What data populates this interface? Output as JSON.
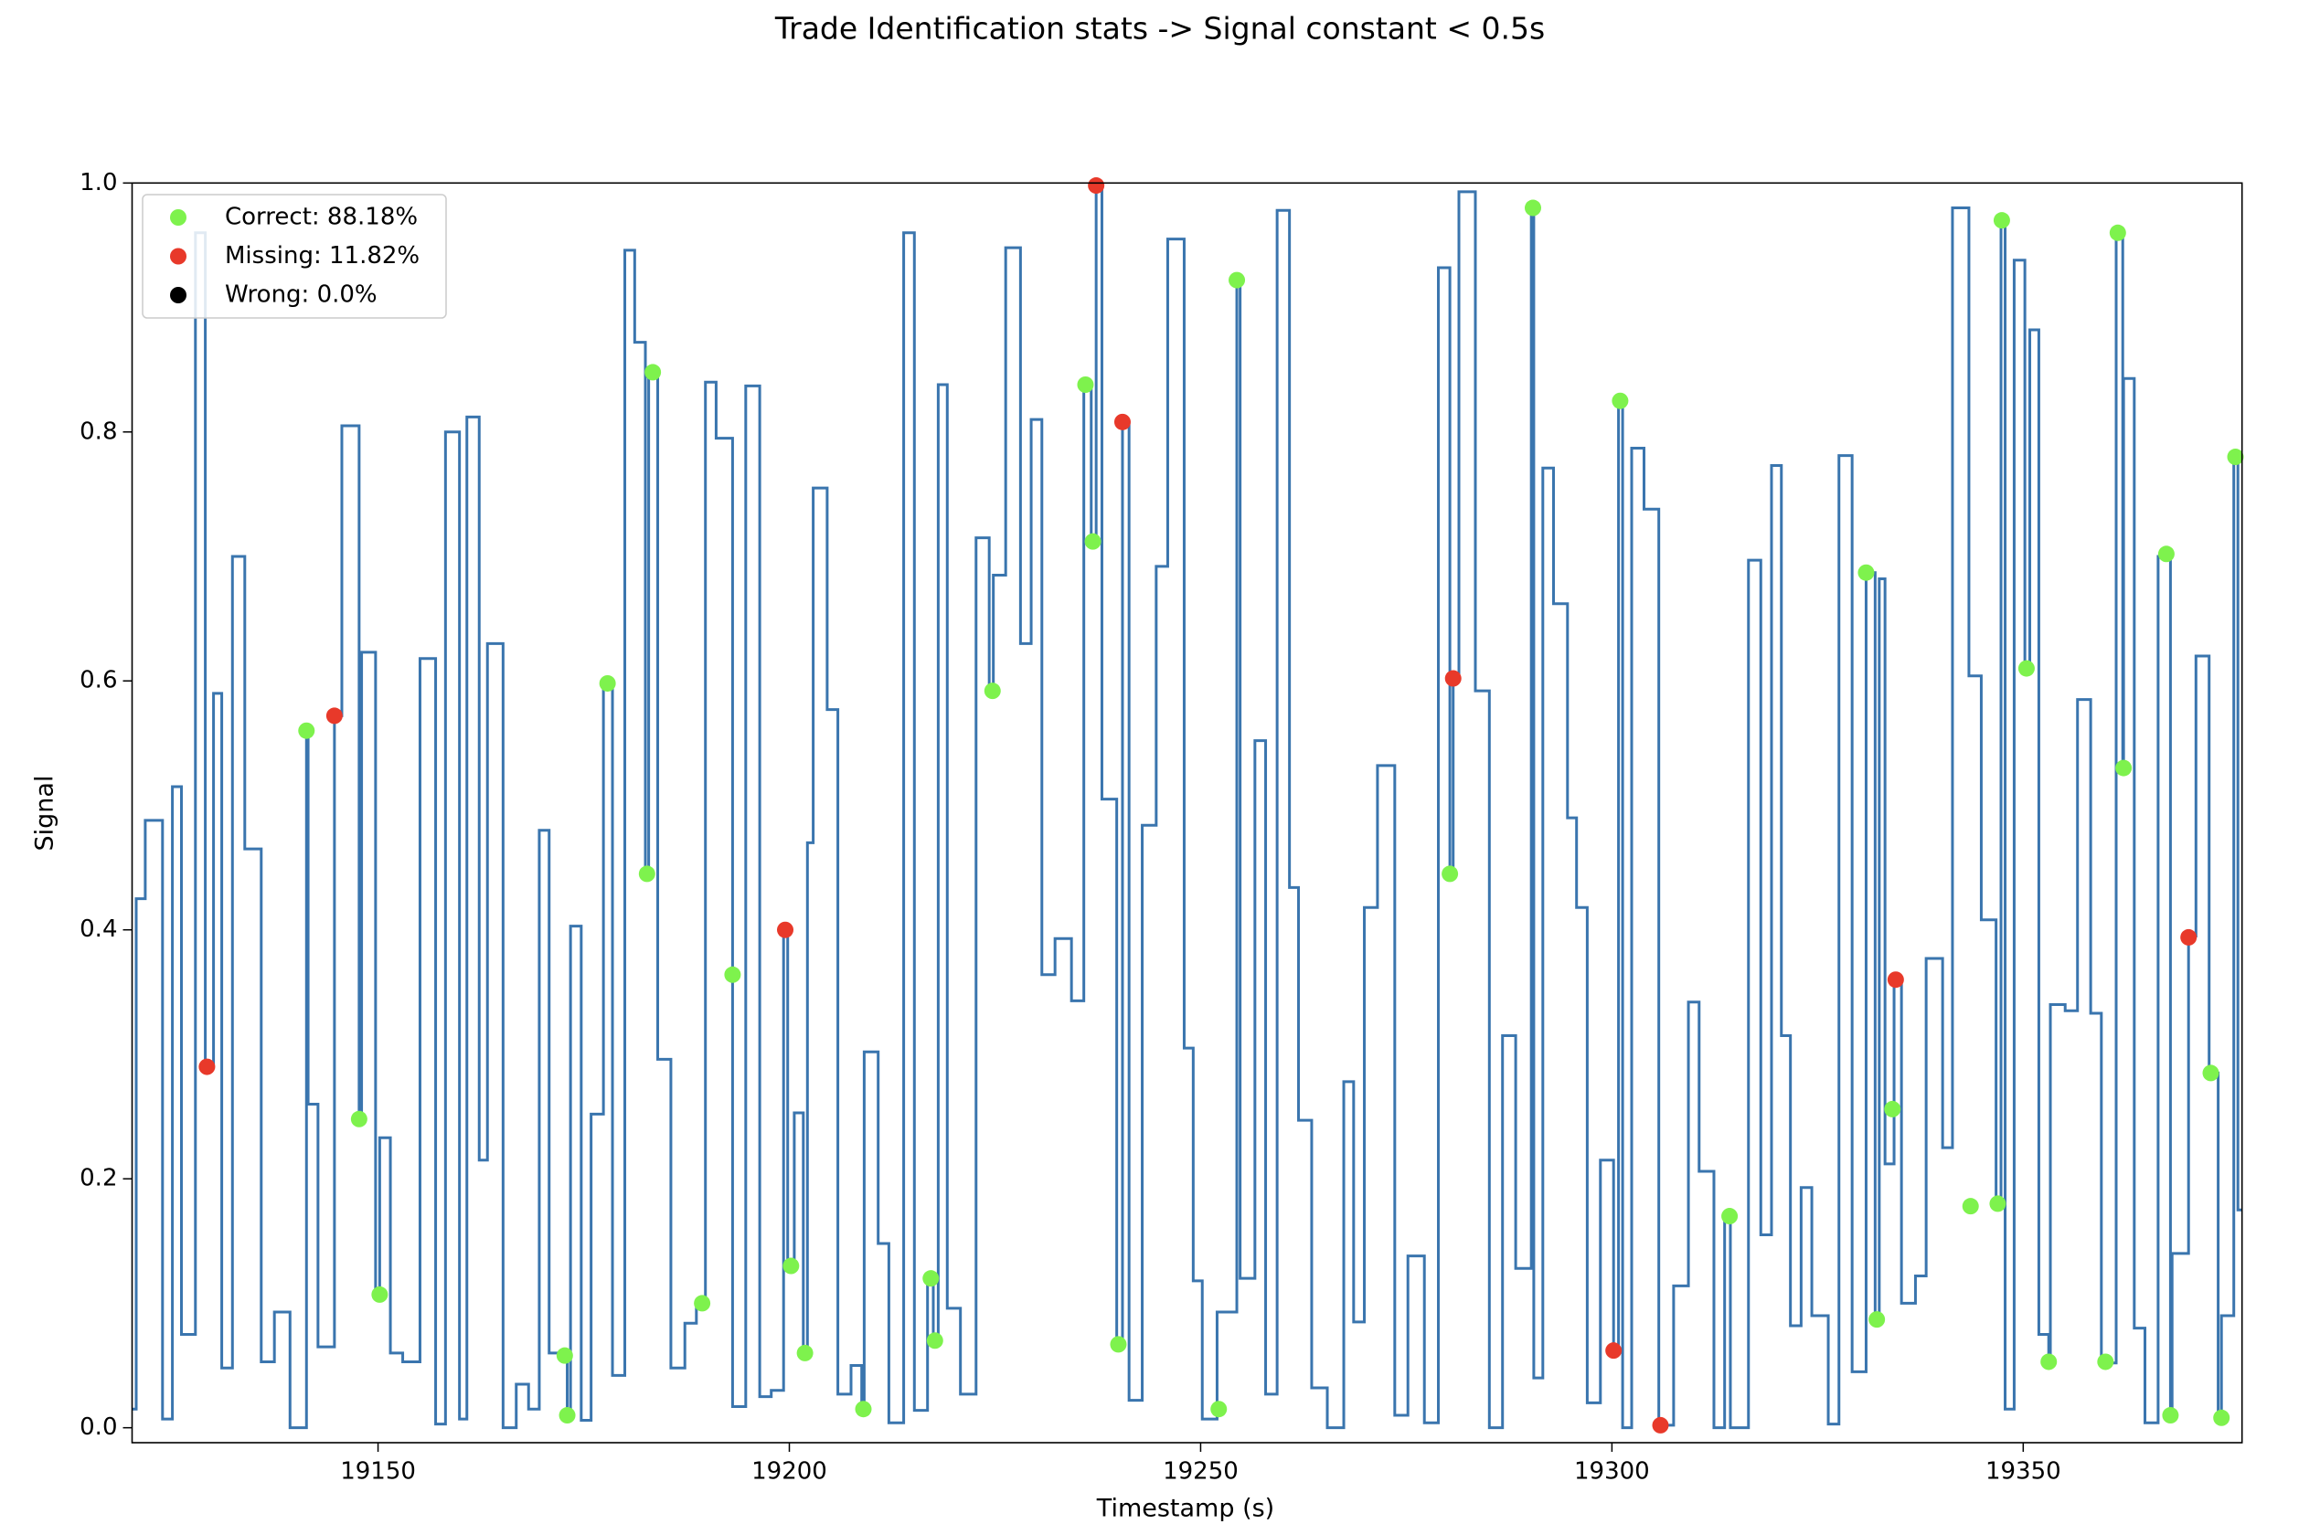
{
  "chart_data": {
    "type": "step",
    "title": "Trade Identification stats -> Signal constant < 0.5s",
    "x_label": "Timestamp (s)",
    "y_label": "Signal",
    "xlim": [
      19120.1,
      19376.6
    ],
    "ylim": [
      -0.012,
      1.0
    ],
    "xticks": [
      19150,
      19200,
      19250,
      19300,
      19350
    ],
    "yticks": [
      {
        "value": 0.0,
        "label": "0.0"
      },
      0.2,
      0.4,
      0.6,
      0.8,
      {
        "value": 1.0,
        "label": "1.0"
      }
    ],
    "legend": "upper left",
    "color": "#3a75ae",
    "x": [
      19120.1,
      19120.6,
      19121.7,
      19123.8,
      19125.0,
      19126.1,
      19127.8,
      19129.0,
      19130.0,
      19131.0,
      19132.3,
      19133.8,
      19135.8,
      19137.4,
      19139.3,
      19141.3,
      19141.5,
      19142.7,
      19144.7,
      19145.6,
      19147.7,
      19148.0,
      19149.7,
      19150.2,
      19151.5,
      19153.0,
      19155.1,
      19157.0,
      19158.2,
      19159.9,
      19160.8,
      19162.3,
      19163.3,
      19165.2,
      19166.8,
      19168.3,
      19169.6,
      19170.8,
      19172.7,
      19173.0,
      19173.4,
      19174.7,
      19175.9,
      19177.4,
      19178.5,
      19180.0,
      19181.2,
      19182.5,
      19182.9,
      19184.0,
      19185.6,
      19187.3,
      19188.7,
      19189.8,
      19191.1,
      19193.1,
      19194.7,
      19196.4,
      19197.8,
      19199.3,
      19199.8,
      19200.6,
      19201.7,
      19202.2,
      19202.9,
      19204.6,
      19205.9,
      19207.5,
      19208.8,
      19209.1,
      19210.8,
      19212.1,
      19213.9,
      19215.2,
      19216.8,
      19217.5,
      19218.1,
      19219.2,
      19220.8,
      19222.7,
      19224.3,
      19224.8,
      19226.3,
      19228.1,
      19229.4,
      19230.7,
      19232.3,
      19234.3,
      19235.8,
      19236.7,
      19237.3,
      19238.0,
      19239.8,
      19240.5,
      19241.3,
      19242.9,
      19244.6,
      19246.0,
      19248.0,
      19249.1,
      19250.2,
      19252.0,
      19254.4,
      19254.8,
      19256.6,
      19257.9,
      19259.3,
      19260.8,
      19261.9,
      19263.5,
      19265.4,
      19267.4,
      19268.6,
      19269.9,
      19271.5,
      19273.6,
      19275.2,
      19277.2,
      19278.9,
      19280.3,
      19280.7,
      19281.4,
      19283.4,
      19285.1,
      19286.7,
      19288.3,
      19290.2,
      19290.5,
      19291.6,
      19292.9,
      19294.6,
      19295.7,
      19297.0,
      19298.6,
      19300.2,
      19300.8,
      19301.3,
      19302.4,
      19303.9,
      19305.7,
      19307.5,
      19309.3,
      19310.6,
      19312.4,
      19313.7,
      19314.4,
      19316.6,
      19318.1,
      19319.4,
      19320.6,
      19321.7,
      19323.0,
      19324.3,
      19326.3,
      19327.6,
      19329.2,
      19330.9,
      19332.0,
      19332.5,
      19333.2,
      19334.3,
      19335.2,
      19336.9,
      19338.2,
      19340.2,
      19341.4,
      19343.4,
      19344.9,
      19346.7,
      19347.3,
      19347.8,
      19348.9,
      19350.2,
      19350.8,
      19351.9,
      19353.1,
      19353.3,
      19355.1,
      19356.6,
      19358.2,
      19359.5,
      19361.3,
      19362.1,
      19362.2,
      19363.5,
      19364.8,
      19366.4,
      19367.9,
      19368.1,
      19370.1,
      19371.0,
      19372.6,
      19373.7,
      19374.1,
      19375.6,
      19376.1,
      19376.6
    ],
    "values": [
      0.015,
      0.425,
      0.488,
      0.007,
      0.515,
      0.075,
      0.96,
      0.29,
      0.59,
      0.048,
      0.7,
      0.465,
      0.053,
      0.093,
      0.0,
      0.56,
      0.26,
      0.065,
      0.572,
      0.805,
      0.25,
      0.623,
      0.107,
      0.233,
      0.06,
      0.053,
      0.618,
      0.003,
      0.8,
      0.007,
      0.812,
      0.215,
      0.63,
      0.0,
      0.035,
      0.015,
      0.48,
      0.06,
      0.058,
      0.01,
      0.403,
      0.006,
      0.252,
      0.598,
      0.042,
      0.946,
      0.872,
      0.445,
      0.848,
      0.296,
      0.048,
      0.084,
      0.1,
      0.84,
      0.795,
      0.017,
      0.837,
      0.025,
      0.03,
      0.4,
      0.13,
      0.253,
      0.06,
      0.47,
      0.755,
      0.577,
      0.027,
      0.05,
      0.014,
      0.302,
      0.148,
      0.004,
      0.96,
      0.014,
      0.12,
      0.07,
      0.838,
      0.096,
      0.027,
      0.715,
      0.592,
      0.685,
      0.948,
      0.63,
      0.81,
      0.364,
      0.393,
      0.343,
      0.838,
      0.712,
      0.998,
      0.505,
      0.067,
      0.808,
      0.022,
      0.484,
      0.692,
      0.955,
      0.305,
      0.118,
      0.007,
      0.093,
      0.922,
      0.12,
      0.552,
      0.027,
      0.978,
      0.434,
      0.247,
      0.032,
      0.0,
      0.278,
      0.085,
      0.418,
      0.532,
      0.01,
      0.138,
      0.004,
      0.932,
      0.445,
      0.602,
      0.993,
      0.592,
      0.0,
      0.315,
      0.128,
      0.98,
      0.04,
      0.771,
      0.662,
      0.49,
      0.418,
      0.02,
      0.215,
      0.062,
      0.825,
      0.0,
      0.787,
      0.738,
      0.002,
      0.114,
      0.342,
      0.206,
      0.0,
      0.17,
      0.0,
      0.697,
      0.155,
      0.773,
      0.315,
      0.082,
      0.193,
      0.09,
      0.003,
      0.781,
      0.045,
      0.687,
      0.087,
      0.682,
      0.212,
      0.36,
      0.1,
      0.122,
      0.377,
      0.225,
      0.98,
      0.604,
      0.408,
      0.18,
      0.97,
      0.015,
      0.938,
      0.61,
      0.882,
      0.075,
      0.05,
      0.34,
      0.335,
      0.585,
      0.333,
      0.052,
      0.96,
      0.53,
      0.843,
      0.08,
      0.004,
      0.7,
      0.01,
      0.14,
      0.395,
      0.62,
      0.285,
      0.01,
      0.09,
      0.78,
      0.175,
      0.175
    ],
    "series": [
      {
        "name": "Correct: 88.18%",
        "color": "#7ef24d",
        "x": [
          19141.3,
          19147.7,
          19150.2,
          19172.7,
          19173.0,
          19177.9,
          19182.7,
          19183.4,
          19189.4,
          19193.1,
          19200.2,
          19201.9,
          19209.0,
          19217.2,
          19217.7,
          19224.7,
          19236.0,
          19236.9,
          19240.0,
          19252.2,
          19254.4,
          19280.3,
          19290.4,
          19301.0,
          19314.3,
          19330.9,
          19332.2,
          19334.1,
          19343.6,
          19346.9,
          19347.4,
          19350.4,
          19353.1,
          19360.0,
          19361.5,
          19362.2,
          19367.4,
          19367.9,
          19372.8,
          19374.1,
          19375.8
        ],
        "values": [
          0.56,
          0.248,
          0.107,
          0.058,
          0.01,
          0.598,
          0.445,
          0.848,
          0.1,
          0.364,
          0.13,
          0.06,
          0.015,
          0.12,
          0.07,
          0.592,
          0.838,
          0.712,
          0.067,
          0.015,
          0.922,
          0.445,
          0.98,
          0.825,
          0.17,
          0.687,
          0.087,
          0.256,
          0.178,
          0.18,
          0.97,
          0.61,
          0.053,
          0.053,
          0.96,
          0.53,
          0.702,
          0.01,
          0.285,
          0.008,
          0.78
        ]
      },
      {
        "name": "Missing: 11.82%",
        "color": "#e8392a",
        "x": [
          19129.2,
          19144.7,
          19199.5,
          19237.3,
          19240.5,
          19280.7,
          19300.2,
          19305.9,
          19334.5,
          19370.1
        ],
        "values": [
          0.29,
          0.572,
          0.4,
          0.998,
          0.808,
          0.602,
          0.062,
          0.002,
          0.36,
          0.394
        ]
      },
      {
        "name": "Wrong: 0.0%",
        "color": "#000000",
        "x": [],
        "values": []
      }
    ]
  }
}
